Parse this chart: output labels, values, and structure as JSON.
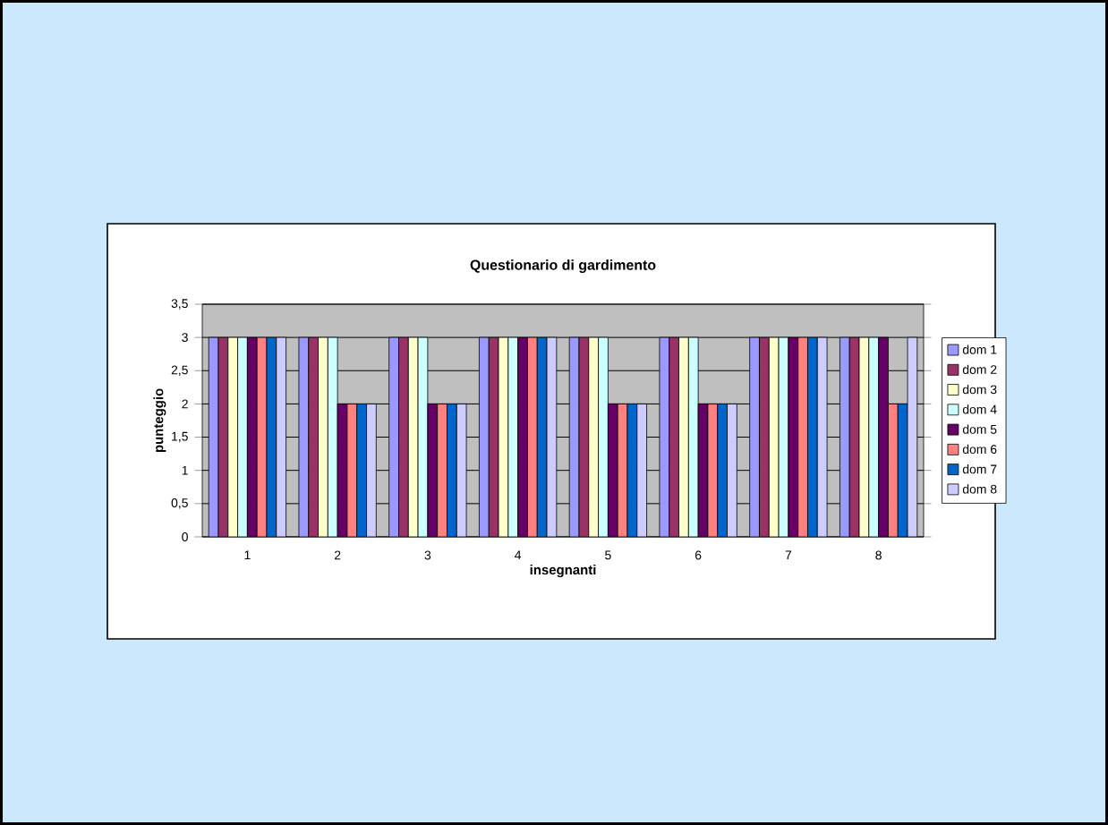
{
  "chart_data": {
    "type": "bar",
    "title": "Questionario di gardimento",
    "xlabel": "insegnanti",
    "ylabel": "punteggio",
    "categories": [
      "1",
      "2",
      "3",
      "4",
      "5",
      "6",
      "7",
      "8"
    ],
    "series": [
      {
        "name": "dom 1",
        "color": "#9999ff",
        "values": [
          3,
          3,
          3,
          3,
          3,
          3,
          3,
          3
        ]
      },
      {
        "name": "dom 2",
        "color": "#993366",
        "values": [
          3,
          3,
          3,
          3,
          3,
          3,
          3,
          3
        ]
      },
      {
        "name": "dom 3",
        "color": "#ffffcc",
        "values": [
          3,
          3,
          3,
          3,
          3,
          3,
          3,
          3
        ]
      },
      {
        "name": "dom 4",
        "color": "#ccffff",
        "values": [
          3,
          3,
          3,
          3,
          3,
          3,
          3,
          3
        ]
      },
      {
        "name": "dom 5",
        "color": "#660066",
        "values": [
          3,
          2,
          2,
          3,
          2,
          2,
          3,
          3
        ]
      },
      {
        "name": "dom 6",
        "color": "#ff8080",
        "values": [
          3,
          2,
          2,
          3,
          2,
          2,
          3,
          2
        ]
      },
      {
        "name": "dom 7",
        "color": "#0066cc",
        "values": [
          3,
          2,
          2,
          3,
          2,
          2,
          3,
          2
        ]
      },
      {
        "name": "dom 8",
        "color": "#ccccff",
        "values": [
          3,
          2,
          2,
          3,
          2,
          2,
          3,
          3
        ]
      }
    ],
    "ylim": [
      0,
      3.5
    ],
    "yticks": [
      0,
      {
        "value": 0.5,
        "label": "0,5"
      },
      1,
      {
        "value": 1.5,
        "label": "1,5"
      },
      2,
      {
        "value": 2.5,
        "label": "2,5"
      },
      3,
      {
        "value": 3.5,
        "label": "3,5"
      }
    ],
    "grid": "y",
    "legend": "right"
  }
}
